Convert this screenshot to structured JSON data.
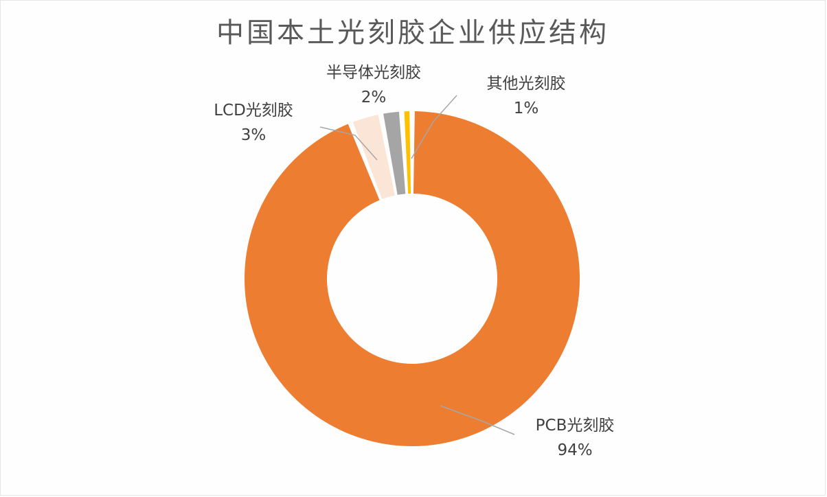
{
  "chart_data": {
    "type": "pie",
    "variant": "donut",
    "title": "中国本土光刻胶企业供应结构",
    "series": [
      {
        "name": "",
        "slices": [
          {
            "label": "PCB光刻胶",
            "value": 94,
            "value_label": "94%",
            "color": "#ED7D31"
          },
          {
            "label": "LCD光刻胶",
            "value": 3,
            "value_label": "3%",
            "color": "#FBE5D6"
          },
          {
            "label": "半导体光刻胶",
            "value": 2,
            "value_label": "2%",
            "color": "#A5A5A5"
          },
          {
            "label": "其他光刻胶",
            "value": 1,
            "value_label": "1%",
            "color": "#FFC000"
          }
        ]
      }
    ],
    "legend": "none",
    "data_labels": "outside with leader lines"
  }
}
